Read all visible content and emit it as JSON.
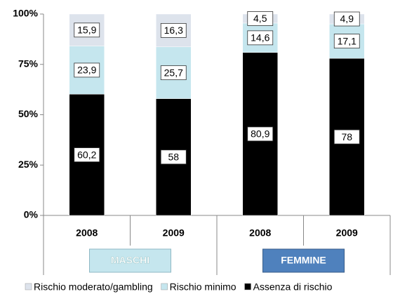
{
  "chart_data": {
    "type": "stacked_bar_100",
    "categories": [
      "2008",
      "2009",
      "2008",
      "2009"
    ],
    "groups": [
      "MASCHI",
      "FEMMINE"
    ],
    "series": [
      {
        "name": "Assenza di rischio",
        "color": "#000000",
        "values": [
          60.2,
          58,
          80.9,
          78
        ],
        "value_labels": [
          "60,2",
          "58",
          "80,9",
          "78"
        ]
      },
      {
        "name": "Rischio minimo",
        "color": "#c5e6ee",
        "values": [
          23.9,
          25.7,
          14.6,
          17.1
        ],
        "value_labels": [
          "23,9",
          "25,7",
          "14,6",
          "17,1"
        ]
      },
      {
        "name": "Rischio moderato/gambling",
        "color": "#dde3ec",
        "values": [
          15.9,
          16.3,
          4.5,
          4.9
        ],
        "value_labels": [
          "15,9",
          "16,3",
          "4,5",
          "4,9"
        ]
      }
    ],
    "ylim": [
      0,
      100
    ],
    "yticks": [
      {
        "value": 0,
        "label": "0%"
      },
      {
        "value": 25,
        "label": "25%"
      },
      {
        "value": 50,
        "label": "50%"
      },
      {
        "value": 75,
        "label": "75%"
      },
      {
        "value": 100,
        "label": "100%"
      }
    ],
    "grid": false,
    "legend": "bottom"
  }
}
